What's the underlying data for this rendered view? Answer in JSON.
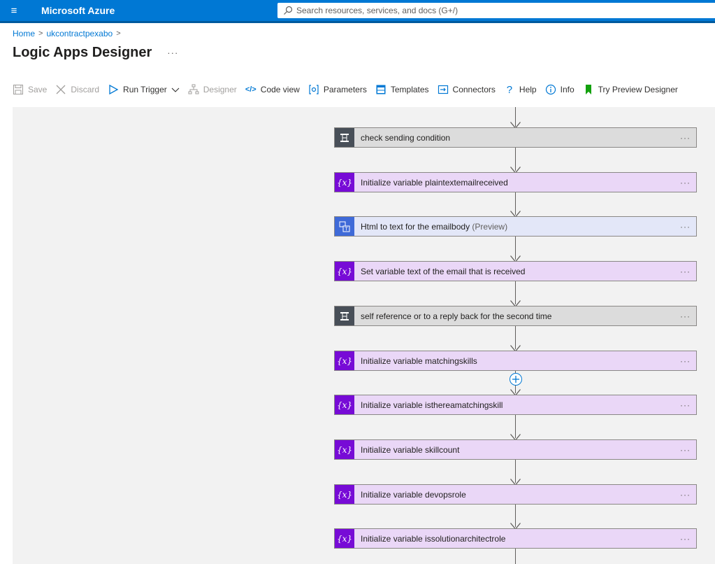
{
  "header": {
    "brand": "Microsoft Azure",
    "search_placeholder": "Search resources, services, and docs (G+/)"
  },
  "breadcrumb": [
    {
      "label": "Home"
    },
    {
      "label": "ukcontractpexabo"
    }
  ],
  "page": {
    "title": "Logic Apps Designer",
    "more": "···"
  },
  "toolbar": {
    "save": "Save",
    "discard": "Discard",
    "run_trigger": "Run Trigger",
    "designer": "Designer",
    "code_view": "Code view",
    "parameters": "Parameters",
    "templates": "Templates",
    "connectors": "Connectors",
    "help": "Help",
    "info": "Info",
    "try_preview": "Try Preview Designer"
  },
  "steps": [
    {
      "type": "condition",
      "title": "check sending condition"
    },
    {
      "type": "variable",
      "title": "Initialize variable plaintextemailreceived"
    },
    {
      "type": "html",
      "title": "Html to text for the emailbody",
      "badge": "(Preview)"
    },
    {
      "type": "variable",
      "title": "Set variable text of the email that is received"
    },
    {
      "type": "condition",
      "title": "self reference or to a reply back for the second time"
    },
    {
      "type": "variable",
      "title": "Initialize variable matchingskills"
    },
    {
      "type": "variable",
      "title": "Initialize variable isthereamatchingskill"
    },
    {
      "type": "variable",
      "title": "Initialize variable skillcount"
    },
    {
      "type": "variable",
      "title": "Initialize variable devopsrole"
    },
    {
      "type": "variable",
      "title": "Initialize variable issolutionarchitectrole"
    }
  ],
  "card_more": "···",
  "variable_icon_text": "{x}",
  "colors": {
    "azure_blue": "#0078d4",
    "condition_bg": "#dcdcdc",
    "variable_bg": "#ead7f7",
    "variable_icon": "#770bd6",
    "html_bg": "#e3e7f8"
  }
}
